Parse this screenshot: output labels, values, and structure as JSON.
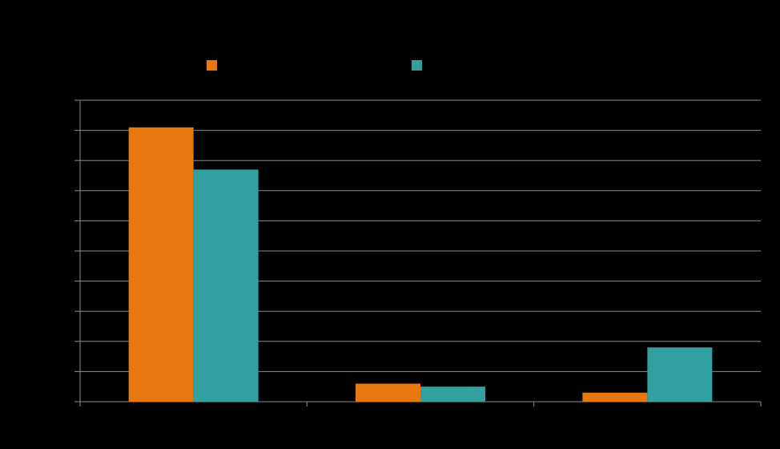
{
  "chart_data": {
    "type": "bar",
    "categories": [
      null,
      null,
      null
    ],
    "series": [
      {
        "color": "#e8770e",
        "values": [
          9.1,
          0.6,
          0.3
        ]
      },
      {
        "color": "#33a0a0",
        "values": [
          7.7,
          0.5,
          1.8
        ]
      }
    ],
    "ylim": [
      0,
      10
    ],
    "yticks": [
      0,
      1,
      2,
      3,
      4,
      5,
      6,
      7,
      8,
      9,
      10
    ],
    "grid": true,
    "legend": "top"
  }
}
